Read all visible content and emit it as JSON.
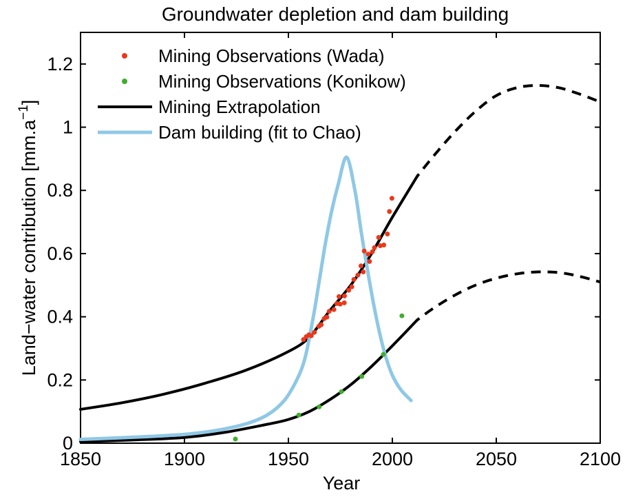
{
  "chart_data": {
    "type": "line",
    "title": "Groundwater depletion and dam building",
    "xlabel": "Year",
    "ylabel": "Land−water contribution [mm.a⁻¹]",
    "ylabel_parts": {
      "main": "Land−water contribution [mm.a",
      "sup": "−1",
      "end": "]"
    },
    "xlim": [
      1850,
      2100
    ],
    "ylim": [
      0,
      1.3
    ],
    "xticks": [
      1850,
      1900,
      1950,
      2000,
      2050,
      2100
    ],
    "xtick_labels": [
      "1850",
      "1900",
      "1950",
      "2000",
      "2050",
      "2100"
    ],
    "yticks": [
      0,
      0.2,
      0.4,
      0.6,
      0.8,
      1,
      1.2
    ],
    "ytick_labels": [
      "0",
      "0.2",
      "0.4",
      "0.6",
      "0.8",
      "1",
      "1.2"
    ],
    "grid": false,
    "legend_position": "top-left-inside",
    "colors": {
      "wada": "#e8391c",
      "konikow": "#3fae2c",
      "extrapolation": "#000000",
      "dam": "#8fc8e6"
    },
    "legend": [
      {
        "label": "Mining Observations (Wada)",
        "marker": "dot",
        "color_key": "wada"
      },
      {
        "label": "Mining Observations (Konikow)",
        "marker": "dot",
        "color_key": "konikow"
      },
      {
        "label": "Mining Extrapolation",
        "marker": "line",
        "color_key": "extrapolation"
      },
      {
        "label": "Dam building (fit to Chao)",
        "marker": "line",
        "color_key": "dam"
      }
    ],
    "series": [
      {
        "name": "Mining Extrapolation (upper, fit to Wada)",
        "type": "line",
        "color_key": "extrapolation",
        "line_width": 4,
        "solid_until": 2012,
        "points": [
          [
            1850,
            0.107
          ],
          [
            1870,
            0.128
          ],
          [
            1890,
            0.155
          ],
          [
            1910,
            0.19
          ],
          [
            1930,
            0.232
          ],
          [
            1950,
            0.29
          ],
          [
            1960,
            0.335
          ],
          [
            1970,
            0.42
          ],
          [
            1980,
            0.5
          ],
          [
            1990,
            0.6
          ],
          [
            2000,
            0.715
          ],
          [
            2012,
            0.845
          ],
          [
            2020,
            0.91
          ],
          [
            2030,
            0.985
          ],
          [
            2040,
            1.05
          ],
          [
            2050,
            1.1
          ],
          [
            2060,
            1.125
          ],
          [
            2070,
            1.132
          ],
          [
            2080,
            1.125
          ],
          [
            2090,
            1.105
          ],
          [
            2100,
            1.08
          ]
        ]
      },
      {
        "name": "Mining Extrapolation (lower, fit to Konikow)",
        "type": "line",
        "color_key": "extrapolation",
        "line_width": 4,
        "solid_until": 2012,
        "points": [
          [
            1850,
            0.005
          ],
          [
            1875,
            0.01
          ],
          [
            1900,
            0.018
          ],
          [
            1920,
            0.035
          ],
          [
            1940,
            0.06
          ],
          [
            1950,
            0.075
          ],
          [
            1960,
            0.1
          ],
          [
            1970,
            0.138
          ],
          [
            1980,
            0.185
          ],
          [
            1990,
            0.243
          ],
          [
            2000,
            0.308
          ],
          [
            2012,
            0.39
          ],
          [
            2020,
            0.428
          ],
          [
            2030,
            0.468
          ],
          [
            2040,
            0.5
          ],
          [
            2050,
            0.522
          ],
          [
            2060,
            0.536
          ],
          [
            2070,
            0.542
          ],
          [
            2080,
            0.54
          ],
          [
            2090,
            0.528
          ],
          [
            2100,
            0.51
          ]
        ]
      },
      {
        "name": "Dam building (fit to Chao)",
        "type": "line",
        "color_key": "dam",
        "line_width": 5,
        "points": [
          [
            1850,
            0.012
          ],
          [
            1880,
            0.02
          ],
          [
            1900,
            0.028
          ],
          [
            1915,
            0.04
          ],
          [
            1930,
            0.062
          ],
          [
            1940,
            0.09
          ],
          [
            1948,
            0.135
          ],
          [
            1954,
            0.2
          ],
          [
            1958,
            0.27
          ],
          [
            1962,
            0.4
          ],
          [
            1965,
            0.52
          ],
          [
            1968,
            0.64
          ],
          [
            1971,
            0.74
          ],
          [
            1974,
            0.82
          ],
          [
            1978,
            0.905
          ],
          [
            1982,
            0.8
          ],
          [
            1985,
            0.67
          ],
          [
            1988,
            0.55
          ],
          [
            1991,
            0.44
          ],
          [
            1994,
            0.345
          ],
          [
            1997,
            0.27
          ],
          [
            2000,
            0.215
          ],
          [
            2004,
            0.17
          ],
          [
            2009,
            0.135
          ]
        ]
      },
      {
        "name": "Mining Observations (Konikow)",
        "type": "scatter",
        "color_key": "konikow",
        "marker_radius": 3.5,
        "points": [
          [
            1924.5,
            0.013
          ],
          [
            1955,
            0.089
          ],
          [
            1964.8,
            0.115
          ],
          [
            1975.5,
            0.163
          ],
          [
            1985.3,
            0.211
          ],
          [
            1995.7,
            0.281
          ],
          [
            2004.6,
            0.403
          ]
        ]
      },
      {
        "name": "Mining Observations (Wada)",
        "type": "scatter",
        "color_key": "wada",
        "marker_radius": 3.5,
        "points": [
          [
            1957.3,
            0.328
          ],
          [
            1958.6,
            0.337
          ],
          [
            1959.9,
            0.343
          ],
          [
            1961,
            0.34
          ],
          [
            1962.5,
            0.351
          ],
          [
            1964.7,
            0.37
          ],
          [
            1965.8,
            0.375
          ],
          [
            1967.2,
            0.394
          ],
          [
            1968.5,
            0.399
          ],
          [
            1969.6,
            0.417
          ],
          [
            1971.9,
            0.423
          ],
          [
            1973.3,
            0.442
          ],
          [
            1974.3,
            0.464
          ],
          [
            1974.9,
            0.44
          ],
          [
            1976.9,
            0.444
          ],
          [
            1977,
            0.466
          ],
          [
            1979,
            0.484
          ],
          [
            1980.5,
            0.495
          ],
          [
            1981.5,
            0.518
          ],
          [
            1983.4,
            0.532
          ],
          [
            1984.9,
            0.561
          ],
          [
            1986,
            0.542
          ],
          [
            1986.5,
            0.608
          ],
          [
            1988.4,
            0.598
          ],
          [
            1989,
            0.575
          ],
          [
            1990.4,
            0.606
          ],
          [
            1991.4,
            0.619
          ],
          [
            1993.4,
            0.651
          ],
          [
            1994.2,
            0.625
          ],
          [
            1995.9,
            0.627
          ],
          [
            1997.6,
            0.662
          ],
          [
            1998.6,
            0.733
          ],
          [
            1999.8,
            0.775
          ]
        ]
      }
    ]
  }
}
